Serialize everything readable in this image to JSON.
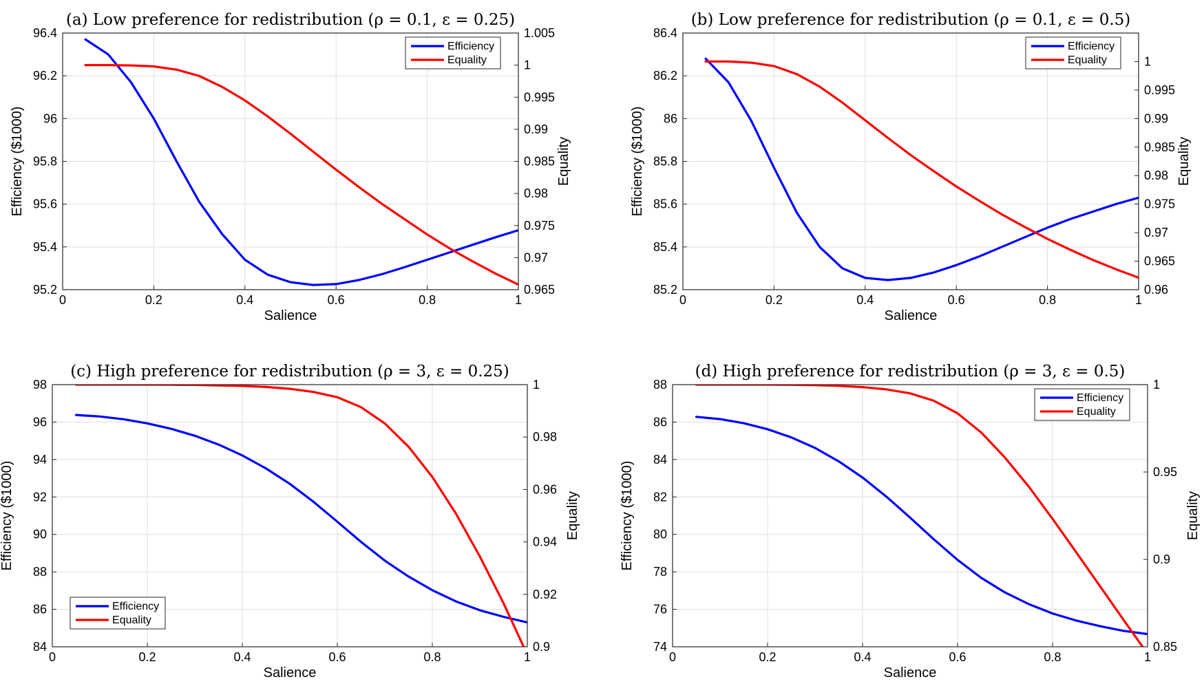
{
  "chart_data": [
    {
      "type": "line",
      "title": "(a) Low preference for redistribution (ρ = 0.1, ε = 0.25)",
      "xlabel": "Salience",
      "ylabel_left": "Efficiency ($1000)",
      "ylabel_right": "Equality",
      "xlim": [
        0,
        1
      ],
      "ylim_left": [
        95.2,
        96.4
      ],
      "ylim_right": [
        0.965,
        1.005
      ],
      "xticks": [
        "0",
        "0.2",
        "0.4",
        "0.6",
        "0.8",
        "1"
      ],
      "yticks_left": [
        "95.2",
        "95.4",
        "95.6",
        "95.8",
        "96",
        "96.2",
        "96.4"
      ],
      "yticks_right": [
        "0.965",
        "0.97",
        "0.975",
        "0.98",
        "0.985",
        "0.99",
        "0.995",
        "1",
        "1.005"
      ],
      "legend": "top-right",
      "grid": true,
      "x": [
        0.05,
        0.1,
        0.15,
        0.2,
        0.25,
        0.3,
        0.35,
        0.4,
        0.45,
        0.5,
        0.55,
        0.6,
        0.65,
        0.7,
        0.75,
        0.8,
        0.85,
        0.9,
        0.95,
        1.0
      ],
      "series": [
        {
          "name": "Efficiency",
          "axis": "left",
          "color": "#0000ff",
          "values": [
            96.37,
            96.3,
            96.17,
            96.0,
            95.8,
            95.61,
            95.46,
            95.34,
            95.27,
            95.235,
            95.222,
            95.226,
            95.245,
            95.272,
            95.305,
            95.34,
            95.375,
            95.41,
            95.445,
            95.478
          ]
        },
        {
          "name": "Equality",
          "axis": "right",
          "color": "#ff0000",
          "values": [
            1.0,
            1.0,
            0.99995,
            0.9998,
            0.9993,
            0.9983,
            0.9966,
            0.9945,
            0.992,
            0.9893,
            0.9865,
            0.9837,
            0.981,
            0.9784,
            0.976,
            0.9736,
            0.9714,
            0.9694,
            0.9675,
            0.9658
          ]
        }
      ]
    },
    {
      "type": "line",
      "title": "(b) Low preference for redistribution (ρ = 0.1, ε = 0.5)",
      "xlabel": "Salience",
      "ylabel_left": "Efficiency ($1000)",
      "ylabel_right": "Equality",
      "xlim": [
        0,
        1
      ],
      "ylim_left": [
        85.2,
        86.4
      ],
      "ylim_right": [
        0.96,
        1.005
      ],
      "xticks": [
        "0",
        "0.2",
        "0.4",
        "0.6",
        "0.8",
        "1"
      ],
      "yticks_left": [
        "85.2",
        "85.4",
        "85.6",
        "85.8",
        "86",
        "86.2",
        "86.4"
      ],
      "yticks_right": [
        "0.96",
        "0.965",
        "0.97",
        "0.975",
        "0.98",
        "0.985",
        "0.99",
        "0.995",
        "1"
      ],
      "legend": "top-right",
      "grid": true,
      "x": [
        0.05,
        0.1,
        0.15,
        0.2,
        0.25,
        0.3,
        0.35,
        0.4,
        0.45,
        0.5,
        0.55,
        0.6,
        0.65,
        0.7,
        0.75,
        0.8,
        0.85,
        0.9,
        0.95,
        1.0
      ],
      "series": [
        {
          "name": "Efficiency",
          "axis": "left",
          "color": "#0000ff",
          "values": [
            86.28,
            86.17,
            85.99,
            85.77,
            85.56,
            85.4,
            85.3,
            85.255,
            85.245,
            85.255,
            85.28,
            85.315,
            85.355,
            85.4,
            85.445,
            85.49,
            85.53,
            85.565,
            85.6,
            85.63
          ]
        },
        {
          "name": "Equality",
          "axis": "right",
          "color": "#ff0000",
          "values": [
            1.0,
            1.0,
            0.9998,
            0.9992,
            0.9978,
            0.9956,
            0.9928,
            0.9897,
            0.9866,
            0.9836,
            0.9808,
            0.9781,
            0.9756,
            0.9732,
            0.971,
            0.9689,
            0.967,
            0.9652,
            0.9636,
            0.9621
          ]
        }
      ]
    },
    {
      "type": "line",
      "title": "(c) High preference for redistribution (ρ = 3, ε = 0.25)",
      "xlabel": "Salience",
      "ylabel_left": "Efficiency ($1000)",
      "ylabel_right": "Equality",
      "xlim": [
        0,
        1
      ],
      "ylim_left": [
        84,
        98
      ],
      "ylim_right": [
        0.9,
        1.0
      ],
      "xticks": [
        "0",
        "0.2",
        "0.4",
        "0.6",
        "0.8",
        "1"
      ],
      "yticks_left": [
        "84",
        "86",
        "88",
        "90",
        "92",
        "94",
        "96",
        "98"
      ],
      "yticks_right": [
        "0.9",
        "0.92",
        "0.94",
        "0.96",
        "0.98",
        "1"
      ],
      "legend": "bottom-left",
      "grid": true,
      "x": [
        0.05,
        0.1,
        0.15,
        0.2,
        0.25,
        0.3,
        0.35,
        0.4,
        0.45,
        0.5,
        0.55,
        0.6,
        0.65,
        0.7,
        0.75,
        0.8,
        0.85,
        0.9,
        0.95,
        1.0
      ],
      "series": [
        {
          "name": "Efficiency",
          "axis": "left",
          "color": "#0000ff",
          "values": [
            96.38,
            96.3,
            96.15,
            95.93,
            95.64,
            95.27,
            94.8,
            94.22,
            93.52,
            92.7,
            91.74,
            90.68,
            89.6,
            88.6,
            87.75,
            87.02,
            86.42,
            85.95,
            85.6,
            85.3
          ]
        },
        {
          "name": "Equality",
          "axis": "right",
          "color": "#ff0000",
          "values": [
            1.0,
            1.0,
            1.0,
            1.0,
            0.99995,
            0.9999,
            0.9997,
            0.9995,
            0.9991,
            0.9984,
            0.9972,
            0.9952,
            0.9914,
            0.9852,
            0.9763,
            0.9648,
            0.9507,
            0.9345,
            0.9166,
            0.897
          ]
        }
      ]
    },
    {
      "type": "line",
      "title": "(d) High preference for redistribution (ρ = 3, ε = 0.5)",
      "xlabel": "Salience",
      "ylabel_left": "Efficiency ($1000)",
      "ylabel_right": "Equality",
      "xlim": [
        0,
        1
      ],
      "ylim_left": [
        74,
        88
      ],
      "ylim_right": [
        0.85,
        1.0
      ],
      "xticks": [
        "0",
        "0.2",
        "0.4",
        "0.6",
        "0.8",
        "1"
      ],
      "yticks_left": [
        "74",
        "76",
        "78",
        "80",
        "82",
        "84",
        "86",
        "88"
      ],
      "yticks_right": [
        "0.85",
        "0.9",
        "0.95",
        "1"
      ],
      "legend": "top-right",
      "grid": true,
      "x": [
        0.05,
        0.1,
        0.15,
        0.2,
        0.25,
        0.3,
        0.35,
        0.4,
        0.45,
        0.5,
        0.55,
        0.6,
        0.65,
        0.7,
        0.75,
        0.8,
        0.85,
        0.9,
        0.95,
        1.0
      ],
      "series": [
        {
          "name": "Efficiency",
          "axis": "left",
          "color": "#0000ff",
          "values": [
            86.28,
            86.16,
            85.94,
            85.62,
            85.18,
            84.62,
            83.9,
            83.04,
            82.02,
            80.9,
            79.74,
            78.64,
            77.68,
            76.9,
            76.28,
            75.78,
            75.4,
            75.1,
            74.85,
            74.68
          ]
        },
        {
          "name": "Equality",
          "axis": "right",
          "color": "#ff0000",
          "values": [
            1.0,
            1.0,
            1.0,
            1.0,
            0.9999,
            0.9997,
            0.9993,
            0.9986,
            0.9973,
            0.995,
            0.9908,
            0.9836,
            0.9726,
            0.9582,
            0.9416,
            0.9232,
            0.904,
            0.8846,
            0.8652,
            0.846
          ]
        }
      ]
    }
  ]
}
